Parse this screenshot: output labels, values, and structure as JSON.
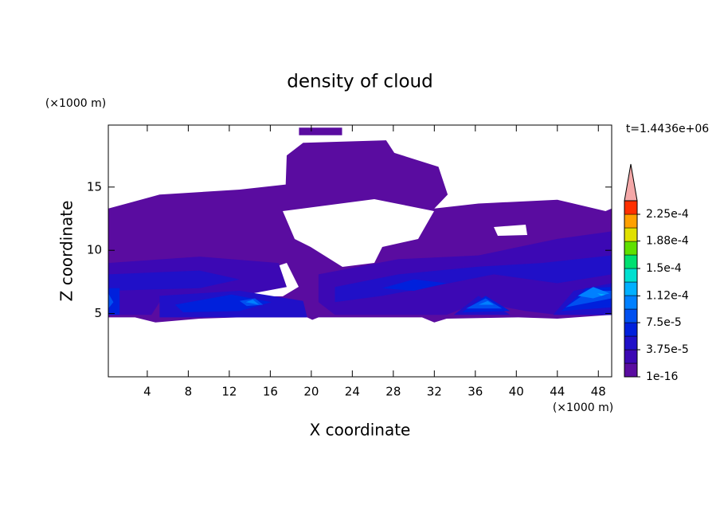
{
  "chart_data": {
    "type": "contour",
    "title": "density of cloud",
    "x_label": "X coordinate",
    "y_label": "Z coordinate",
    "x_unit": "(×1000 m)",
    "y_unit": "(×1000 m)",
    "time_label": "t=1.4436e+06",
    "xlim": [
      0.2,
      49.3
    ],
    "ylim": [
      0,
      19.9
    ],
    "xticks": [
      4,
      8,
      12,
      16,
      20,
      24,
      28,
      32,
      36,
      40,
      44,
      48
    ],
    "yticks": [
      5,
      10,
      15
    ],
    "colorbar": {
      "levels": [
        1e-16,
        1.875e-05,
        3.75e-05,
        5.625e-05,
        7.5e-05,
        9.375e-05,
        0.0001125,
        0.00013125,
        0.00015,
        0.00016875,
        0.0001875,
        0.00020625,
        0.000225,
        0.00024375
      ],
      "colors": [
        "#5a0ca0",
        "#3c08b4",
        "#2010c8",
        "#0020dc",
        "#0050f0",
        "#0080ff",
        "#00b0ff",
        "#00e0d0",
        "#00e070",
        "#60e000",
        "#e0e000",
        "#ffa000",
        "#ff3000"
      ],
      "extend_color": "#f4a8a8",
      "ticks": [
        {
          "value": 1e-16,
          "label": "1e-16"
        },
        {
          "value": 3.75e-05,
          "label": "3.75e-5"
        },
        {
          "value": 7.5e-05,
          "label": "7.5e-5"
        },
        {
          "value": 0.000112,
          "label": "1.12e-4"
        },
        {
          "value": 0.00015,
          "label": "1.5e-4"
        },
        {
          "value": 0.000188,
          "label": "1.88e-4"
        },
        {
          "value": 0.000225,
          "label": "2.25e-4"
        }
      ]
    },
    "regions": [
      {
        "level": 1e-16,
        "points": [
          0.2,
          13.3,
          5.2,
          14.4,
          13.0,
          14.8,
          17.5,
          15.2,
          17.6,
          17.5,
          19.2,
          18.5,
          27.3,
          18.7,
          28.1,
          17.7,
          32.4,
          16.6,
          33.3,
          14.4,
          32.0,
          13.3,
          36.3,
          13.7,
          44.0,
          14.0,
          48.7,
          13.1,
          49.3,
          13.3,
          49.3,
          4.9,
          44.0,
          4.6,
          40.2,
          4.7,
          33.2,
          4.6,
          32.0,
          4.3,
          30.8,
          4.7,
          20.7,
          4.7,
          20.1,
          4.5,
          19.6,
          4.7,
          13.0,
          4.7,
          9.1,
          4.6,
          4.8,
          4.3,
          2.8,
          4.7,
          0.2,
          4.7
        ]
      },
      {
        "level": 1e-16,
        "points": [
          18.8,
          19.7,
          23.0,
          19.7,
          23.0,
          19.1,
          18.8,
          19.1
        ]
      },
      {
        "level": 1.875e-05,
        "points": [
          0.2,
          9.0,
          9.1,
          9.5,
          16.8,
          9.0,
          17.6,
          7.1,
          13.0,
          6.4,
          5.2,
          5.9,
          4.4,
          4.9,
          0.2,
          4.9
        ]
      },
      {
        "level": 1.875e-05,
        "points": [
          20.7,
          8.1,
          28.5,
          9.3,
          36.3,
          9.6,
          44.0,
          10.9,
          49.3,
          11.5,
          49.3,
          4.9,
          44.0,
          4.9,
          40.9,
          5.2,
          36.3,
          5.9,
          33.2,
          4.9,
          22.3,
          4.9,
          20.7,
          5.9
        ]
      },
      {
        "level": 3.75e-05,
        "points": [
          0.2,
          8.1,
          9.1,
          8.4,
          13.0,
          7.7,
          9.1,
          7.0,
          0.2,
          6.8
        ]
      },
      {
        "level": 3.75e-05,
        "points": [
          5.2,
          6.4,
          13.0,
          6.8,
          19.2,
          6.0,
          19.6,
          4.7,
          5.2,
          4.7
        ]
      },
      {
        "level": 3.75e-05,
        "points": [
          22.3,
          7.1,
          28.5,
          8.1,
          36.3,
          8.7,
          42.5,
          9.0,
          49.3,
          9.6,
          49.3,
          8.1,
          44.0,
          7.4,
          37.8,
          8.1,
          31.6,
          7.1,
          26.9,
          6.4,
          22.3,
          5.9
        ]
      },
      {
        "level": 3.75e-05,
        "points": [
          33.9,
          4.9,
          36.3,
          6.4,
          39.4,
          4.9
        ]
      },
      {
        "level": 3.75e-05,
        "points": [
          43.6,
          4.9,
          45.6,
          6.8,
          49.3,
          7.4,
          49.3,
          4.9
        ]
      },
      {
        "level": 5.625e-05,
        "points": [
          0.2,
          7.0,
          1.3,
          7.0,
          1.3,
          4.9,
          0.2,
          4.9
        ]
      },
      {
        "level": 5.625e-05,
        "points": [
          6.7,
          5.7,
          12.2,
          6.5,
          16.1,
          5.9,
          13.0,
          5.2,
          7.5,
          5.1
        ]
      },
      {
        "level": 5.625e-05,
        "points": [
          26.9,
          7.0,
          30.0,
          7.7,
          33.2,
          7.4,
          30.0,
          6.8
        ]
      },
      {
        "level": 5.625e-05,
        "points": [
          34.7,
          5.1,
          37.0,
          6.4,
          39.4,
          5.2
        ]
      },
      {
        "level": 5.625e-05,
        "points": [
          44.4,
          5.2,
          46.8,
          7.0,
          49.3,
          7.1,
          49.3,
          5.5
        ]
      },
      {
        "level": 7.5e-05,
        "points": [
          0.2,
          6.6,
          0.7,
          5.9,
          0.2,
          5.4
        ]
      },
      {
        "level": 7.5e-05,
        "points": [
          13.0,
          6.0,
          14.5,
          6.2,
          15.3,
          5.7,
          13.7,
          5.6
        ]
      },
      {
        "level": 7.5e-05,
        "points": [
          35.1,
          5.4,
          37.0,
          6.2,
          38.6,
          5.4
        ]
      },
      {
        "level": 7.5e-05,
        "points": [
          44.8,
          5.5,
          47.1,
          6.8,
          49.3,
          6.8,
          49.3,
          6.2
        ]
      },
      {
        "level": 9.375e-05,
        "points": [
          13.6,
          5.9,
          14.3,
          6.1,
          14.9,
          5.7
        ]
      },
      {
        "level": 9.375e-05,
        "points": [
          36.3,
          5.7,
          37.2,
          6.0,
          37.8,
          5.7
        ]
      },
      {
        "level": 9.375e-05,
        "points": [
          46.0,
          6.4,
          47.5,
          7.1,
          49.1,
          6.6,
          47.5,
          6.2
        ]
      },
      {
        "level": 0.0001125,
        "points": [
          47.9,
          6.6,
          48.7,
          6.5,
          48.3,
          6.4
        ]
      }
    ]
  }
}
